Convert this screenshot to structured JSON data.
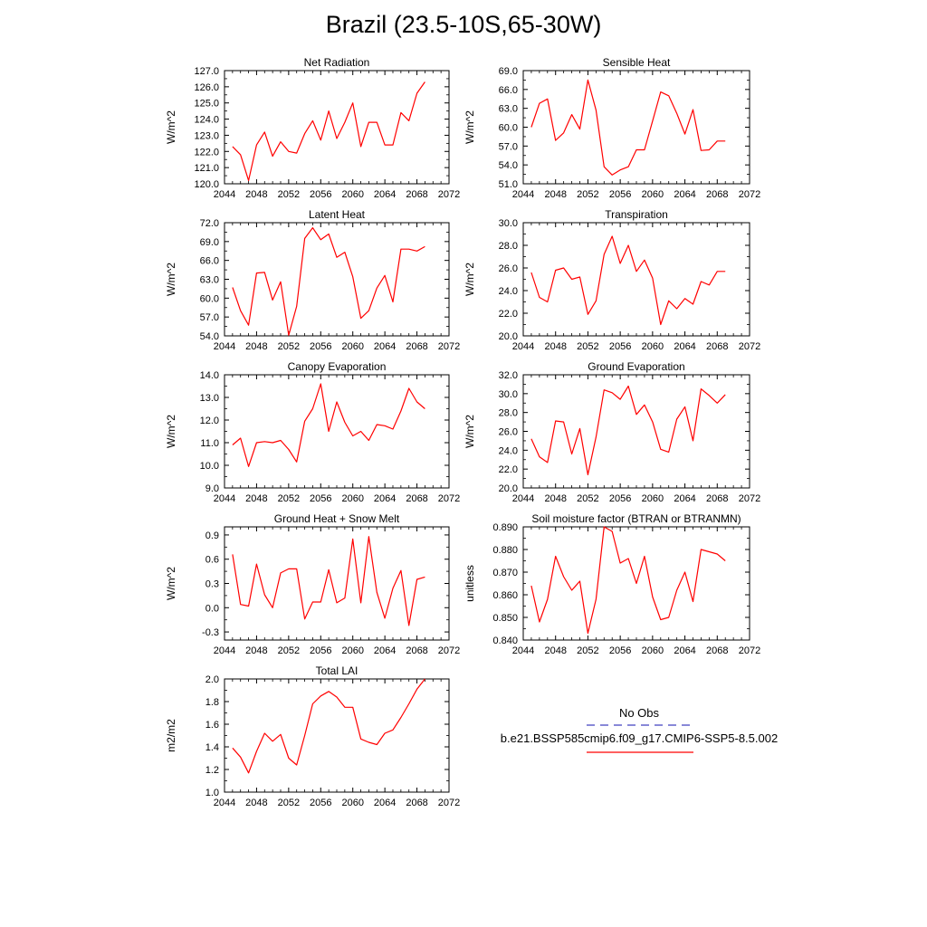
{
  "figure": {
    "title": "Brazil (23.5-10S,65-30W)"
  },
  "chart_data": [
    {
      "type": "line",
      "title": "Net Radiation",
      "ylabel": "W/m^2",
      "xlim": [
        2044,
        2072
      ],
      "ylim": [
        120.0,
        127.0
      ],
      "xticks": [
        "2044",
        "2048",
        "2052",
        "2056",
        "2060",
        "2064",
        "2068",
        "2072"
      ],
      "yticks": [
        "120.0",
        "121.0",
        "122.0",
        "123.0",
        "124.0",
        "125.0",
        "126.0",
        "127.0"
      ],
      "x": [
        2045,
        2046,
        2047,
        2048,
        2049,
        2050,
        2051,
        2052,
        2053,
        2054,
        2055,
        2056,
        2057,
        2058,
        2059,
        2060,
        2061,
        2062,
        2063,
        2064,
        2065,
        2066,
        2067,
        2068,
        2069
      ],
      "series": [
        {
          "values": [
            122.3,
            121.8,
            120.2,
            122.4,
            123.2,
            121.7,
            122.6,
            122.0,
            121.9,
            123.1,
            123.9,
            122.7,
            124.5,
            122.8,
            123.8,
            125.0,
            122.3,
            123.8,
            123.8,
            122.4,
            122.4,
            124.4,
            123.9,
            125.6,
            126.3
          ],
          "color": "#ff0000"
        }
      ]
    },
    {
      "type": "line",
      "title": "Sensible Heat",
      "ylabel": "W/m^2",
      "xlim": [
        2044,
        2072
      ],
      "ylim": [
        51.0,
        69.0
      ],
      "xticks": [
        "2044",
        "2048",
        "2052",
        "2056",
        "2060",
        "2064",
        "2068",
        "2072"
      ],
      "yticks": [
        "51.0",
        "54.0",
        "57.0",
        "60.0",
        "63.0",
        "66.0",
        "69.0"
      ],
      "x": [
        2045,
        2046,
        2047,
        2048,
        2049,
        2050,
        2051,
        2052,
        2053,
        2054,
        2055,
        2056,
        2057,
        2058,
        2059,
        2060,
        2061,
        2062,
        2063,
        2064,
        2065,
        2066,
        2067,
        2068,
        2069
      ],
      "series": [
        {
          "values": [
            60.0,
            63.8,
            64.5,
            57.9,
            59.1,
            62.0,
            59.7,
            67.5,
            62.7,
            53.7,
            52.4,
            53.2,
            53.7,
            56.4,
            56.4,
            61.0,
            65.6,
            65.0,
            62.2,
            58.9,
            62.8,
            56.3,
            56.4,
            57.8,
            57.8
          ],
          "color": "#ff0000"
        }
      ]
    },
    {
      "type": "line",
      "title": "Latent Heat",
      "ylabel": "W/m^2",
      "xlim": [
        2044,
        2072
      ],
      "ylim": [
        54.0,
        72.0
      ],
      "xticks": [
        "2044",
        "2048",
        "2052",
        "2056",
        "2060",
        "2064",
        "2068",
        "2072"
      ],
      "yticks": [
        "54.0",
        "57.0",
        "60.0",
        "63.0",
        "66.0",
        "69.0",
        "72.0"
      ],
      "x": [
        2045,
        2046,
        2047,
        2048,
        2049,
        2050,
        2051,
        2052,
        2053,
        2054,
        2055,
        2056,
        2057,
        2058,
        2059,
        2060,
        2061,
        2062,
        2063,
        2064,
        2065,
        2066,
        2067,
        2068,
        2069
      ],
      "series": [
        {
          "values": [
            61.7,
            58.0,
            55.7,
            64.0,
            64.1,
            59.7,
            62.6,
            54.1,
            58.7,
            69.5,
            71.2,
            69.3,
            70.2,
            66.5,
            67.3,
            63.4,
            56.8,
            58.0,
            61.6,
            63.6,
            59.4,
            67.8,
            67.8,
            67.5,
            68.2
          ],
          "color": "#ff0000"
        }
      ]
    },
    {
      "type": "line",
      "title": "Transpiration",
      "ylabel": "W/m^2",
      "xlim": [
        2044,
        2072
      ],
      "ylim": [
        20.0,
        30.0
      ],
      "xticks": [
        "2044",
        "2048",
        "2052",
        "2056",
        "2060",
        "2064",
        "2068",
        "2072"
      ],
      "yticks": [
        "20.0",
        "22.0",
        "24.0",
        "26.0",
        "28.0",
        "30.0"
      ],
      "x": [
        2045,
        2046,
        2047,
        2048,
        2049,
        2050,
        2051,
        2052,
        2053,
        2054,
        2055,
        2056,
        2057,
        2058,
        2059,
        2060,
        2061,
        2062,
        2063,
        2064,
        2065,
        2066,
        2067,
        2068,
        2069
      ],
      "series": [
        {
          "values": [
            25.6,
            23.4,
            23.0,
            25.8,
            26.0,
            25.0,
            25.2,
            21.9,
            23.1,
            27.2,
            28.8,
            26.4,
            28.0,
            25.7,
            26.7,
            25.1,
            21.0,
            23.1,
            22.4,
            23.3,
            22.8,
            24.8,
            24.5,
            25.7,
            25.7
          ],
          "color": "#ff0000"
        }
      ]
    },
    {
      "type": "line",
      "title": "Canopy Evaporation",
      "ylabel": "W/m^2",
      "xlim": [
        2044,
        2072
      ],
      "ylim": [
        9.0,
        14.0
      ],
      "xticks": [
        "2044",
        "2048",
        "2052",
        "2056",
        "2060",
        "2064",
        "2068",
        "2072"
      ],
      "yticks": [
        "9.0",
        "10.0",
        "11.0",
        "12.0",
        "13.0",
        "14.0"
      ],
      "x": [
        2045,
        2046,
        2047,
        2048,
        2049,
        2050,
        2051,
        2052,
        2053,
        2054,
        2055,
        2056,
        2057,
        2058,
        2059,
        2060,
        2061,
        2062,
        2063,
        2064,
        2065,
        2066,
        2067,
        2068,
        2069
      ],
      "series": [
        {
          "values": [
            10.9,
            11.2,
            9.95,
            11.0,
            11.05,
            11.0,
            11.1,
            10.7,
            10.15,
            11.95,
            12.5,
            13.6,
            11.5,
            12.8,
            11.9,
            11.3,
            11.5,
            11.1,
            11.8,
            11.75,
            11.6,
            12.4,
            13.4,
            12.8,
            12.5
          ],
          "color": "#ff0000"
        }
      ]
    },
    {
      "type": "line",
      "title": "Ground Evaporation",
      "ylabel": "W/m^2",
      "xlim": [
        2044,
        2072
      ],
      "ylim": [
        20.0,
        32.0
      ],
      "xticks": [
        "2044",
        "2048",
        "2052",
        "2056",
        "2060",
        "2064",
        "2068",
        "2072"
      ],
      "yticks": [
        "20.0",
        "22.0",
        "24.0",
        "26.0",
        "28.0",
        "30.0",
        "32.0"
      ],
      "x": [
        2045,
        2046,
        2047,
        2048,
        2049,
        2050,
        2051,
        2052,
        2053,
        2054,
        2055,
        2056,
        2057,
        2058,
        2059,
        2060,
        2061,
        2062,
        2063,
        2064,
        2065,
        2066,
        2067,
        2068,
        2069
      ],
      "series": [
        {
          "values": [
            25.2,
            23.3,
            22.7,
            27.1,
            27.0,
            23.6,
            26.3,
            21.4,
            25.4,
            30.4,
            30.1,
            29.4,
            30.8,
            27.8,
            28.8,
            27.0,
            24.1,
            23.8,
            27.3,
            28.6,
            25.0,
            30.5,
            29.8,
            29.0,
            29.9
          ],
          "color": "#ff0000"
        }
      ]
    },
    {
      "type": "line",
      "title": "Ground Heat + Snow Melt",
      "ylabel": "W/m^2",
      "xlim": [
        2044,
        2072
      ],
      "ylim": [
        -0.4,
        1.0
      ],
      "xticks": [
        "2044",
        "2048",
        "2052",
        "2056",
        "2060",
        "2064",
        "2068",
        "2072"
      ],
      "yticks": [
        "-0.3",
        "0.0",
        "0.3",
        "0.6",
        "0.9"
      ],
      "yticks_values": [
        -0.3,
        0.0,
        0.3,
        0.6,
        0.9
      ],
      "x": [
        2045,
        2046,
        2047,
        2048,
        2049,
        2050,
        2051,
        2052,
        2053,
        2054,
        2055,
        2056,
        2057,
        2058,
        2059,
        2060,
        2061,
        2062,
        2063,
        2064,
        2065,
        2066,
        2067,
        2068,
        2069
      ],
      "series": [
        {
          "values": [
            0.66,
            0.04,
            0.02,
            0.54,
            0.16,
            0.0,
            0.43,
            0.48,
            0.48,
            -0.14,
            0.07,
            0.07,
            0.47,
            0.06,
            0.12,
            0.85,
            0.06,
            0.88,
            0.19,
            -0.13,
            0.24,
            0.46,
            -0.22,
            0.35,
            0.38
          ],
          "color": "#ff0000"
        }
      ]
    },
    {
      "type": "line",
      "title": "Soil moisture factor (BTRAN or BTRANMN)",
      "ylabel": "unitless",
      "xlim": [
        2044,
        2072
      ],
      "ylim": [
        0.84,
        0.89
      ],
      "xticks": [
        "2044",
        "2048",
        "2052",
        "2056",
        "2060",
        "2064",
        "2068",
        "2072"
      ],
      "yticks": [
        "0.840",
        "0.850",
        "0.860",
        "0.870",
        "0.880",
        "0.890"
      ],
      "x": [
        2045,
        2046,
        2047,
        2048,
        2049,
        2050,
        2051,
        2052,
        2053,
        2054,
        2055,
        2056,
        2057,
        2058,
        2059,
        2060,
        2061,
        2062,
        2063,
        2064,
        2065,
        2066,
        2067,
        2068,
        2069
      ],
      "series": [
        {
          "values": [
            0.864,
            0.848,
            0.858,
            0.877,
            0.868,
            0.862,
            0.866,
            0.843,
            0.858,
            0.89,
            0.888,
            0.874,
            0.876,
            0.865,
            0.877,
            0.859,
            0.849,
            0.85,
            0.862,
            0.87,
            0.857,
            0.88,
            0.879,
            0.878,
            0.875
          ],
          "color": "#ff0000"
        }
      ]
    },
    {
      "type": "line",
      "title": "Total LAI",
      "ylabel": "m2/m2",
      "xlim": [
        2044,
        2072
      ],
      "ylim": [
        1.0,
        2.0
      ],
      "xticks": [
        "2044",
        "2048",
        "2052",
        "2056",
        "2060",
        "2064",
        "2068",
        "2072"
      ],
      "yticks": [
        "1.0",
        "1.2",
        "1.4",
        "1.6",
        "1.8",
        "2.0"
      ],
      "x": [
        2045,
        2046,
        2047,
        2048,
        2049,
        2050,
        2051,
        2052,
        2053,
        2054,
        2055,
        2056,
        2057,
        2058,
        2059,
        2060,
        2061,
        2062,
        2063,
        2064,
        2065,
        2066,
        2067,
        2068,
        2069
      ],
      "series": [
        {
          "values": [
            1.39,
            1.31,
            1.17,
            1.36,
            1.52,
            1.45,
            1.51,
            1.3,
            1.24,
            1.5,
            1.78,
            1.85,
            1.89,
            1.84,
            1.75,
            1.75,
            1.47,
            1.44,
            1.42,
            1.52,
            1.55,
            1.66,
            1.78,
            1.91,
            2.0
          ],
          "color": "#ff0000"
        }
      ]
    }
  ],
  "legend": {
    "entries": [
      {
        "label": "No Obs",
        "color": "#4040c0",
        "style": "dashed"
      },
      {
        "label": "b.e21.BSSP585cmip6.f09_g17.CMIP6-SSP5-8.5.002",
        "color": "#ff0000",
        "style": "solid"
      }
    ]
  }
}
